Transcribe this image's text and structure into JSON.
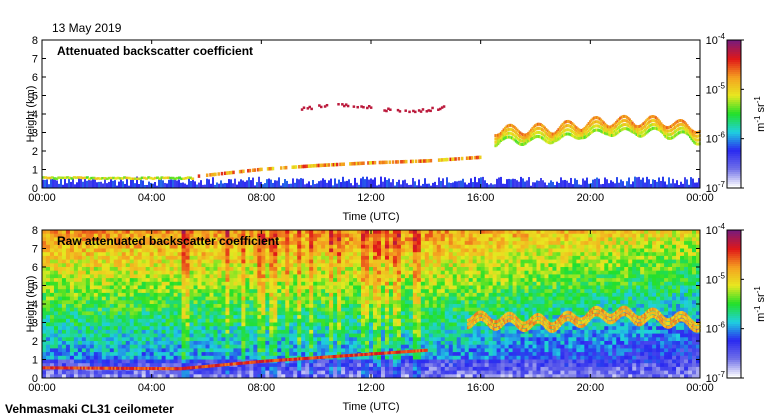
{
  "page": {
    "date": "13 May 2019",
    "footer": "Vehmasmaki CL31 ceilometer"
  },
  "colorscale": {
    "stops": [
      "#ffffff",
      "#6f6fe8",
      "#2a2af0",
      "#1fd0e0",
      "#22e02a",
      "#e8e820",
      "#f5a020",
      "#e01818",
      "#7a1a7a"
    ],
    "ticks": [
      "10^-4",
      "10^-5",
      "10^-6",
      "10^-7"
    ],
    "unit": "m^-1 sr^-1"
  },
  "chart_data": [
    {
      "type": "heatmap",
      "title": "Attenuated backscatter coefficient",
      "xlabel": "Time (UTC)",
      "ylabel": "Height (km)",
      "xlim": [
        "00:00",
        "24:00"
      ],
      "ylim": [
        0,
        8
      ],
      "x_ticks": [
        "00:00",
        "04:00",
        "08:00",
        "12:00",
        "16:00",
        "20:00",
        "00:00"
      ],
      "y_ticks": [
        "0",
        "1",
        "2",
        "3",
        "4",
        "5",
        "6",
        "7",
        "8"
      ],
      "clim": [
        "1e-7",
        "1e-4"
      ],
      "log_color": true,
      "features": [
        {
          "name": "boundary layer",
          "time_start_h": 0,
          "time_end_h": 5.5,
          "height_km": 0.55,
          "level": 0.62
        },
        {
          "name": "rising cloud layer",
          "points": [
            [
              5.5,
              0.6
            ],
            [
              8,
              1.0
            ],
            [
              10,
              1.2
            ],
            [
              12,
              1.35
            ],
            [
              14,
              1.45
            ],
            [
              16,
              1.65
            ]
          ],
          "level": 0.75
        },
        {
          "name": "mid-level cloud",
          "time_start_h": 9.3,
          "time_end_h": 14.8,
          "height_km": 4.3,
          "level": 0.92
        },
        {
          "name": "upper cloud",
          "points": [
            [
              16.5,
              2.9
            ],
            [
              18.5,
              3.0
            ],
            [
              20.5,
              3.4
            ],
            [
              22.5,
              3.4
            ],
            [
              24,
              3.0
            ]
          ],
          "level": 0.7
        },
        {
          "name": "near-surface noise",
          "time_start_h": 0,
          "time_end_h": 24,
          "height_km": 0.3,
          "level": 0.25
        }
      ]
    },
    {
      "type": "heatmap",
      "title": "Raw attenuated backscatter coefficient",
      "xlabel": "Time (UTC)",
      "ylabel": "Height (km)",
      "xlim": [
        "00:00",
        "24:00"
      ],
      "ylim": [
        0,
        8
      ],
      "x_ticks": [
        "00:00",
        "04:00",
        "08:00",
        "12:00",
        "16:00",
        "20:00",
        "00:00"
      ],
      "y_ticks": [
        "0",
        "1",
        "2",
        "3",
        "4",
        "5",
        "6",
        "7",
        "8"
      ],
      "clim": [
        "1e-7",
        "1e-4"
      ],
      "log_color": true,
      "features": [
        {
          "name": "noise background",
          "note_level_top": 0.72,
          "note_level_bottom": 0.2
        },
        {
          "name": "rising cloud layer",
          "points": [
            [
              0,
              0.55
            ],
            [
              5,
              0.5
            ],
            [
              8,
              0.9
            ],
            [
              12,
              1.3
            ],
            [
              14,
              1.5
            ]
          ],
          "level": 0.85
        },
        {
          "name": "upper cloud",
          "points": [
            [
              15.5,
              3.2
            ],
            [
              18.5,
              3.0
            ],
            [
              20.5,
              3.5
            ],
            [
              22.5,
              3.3
            ],
            [
              24,
              3.0
            ]
          ],
          "level": 0.72
        }
      ]
    }
  ]
}
